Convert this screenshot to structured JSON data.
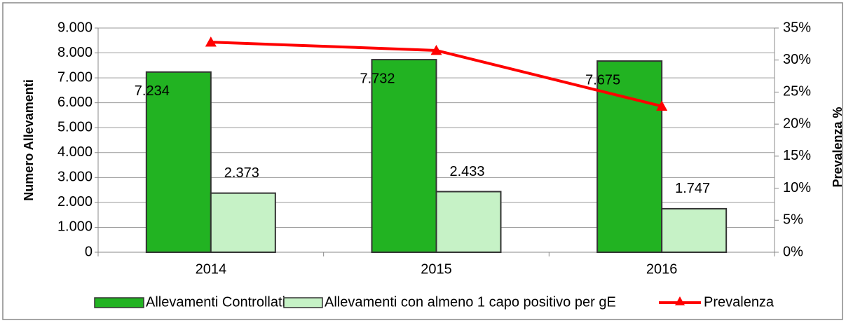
{
  "chart_data": {
    "type": "bar",
    "categories": [
      "2014",
      "2015",
      "2016"
    ],
    "series": [
      {
        "name": "Allevamenti Controllati",
        "color": "#22b322",
        "values": [
          7234,
          7732,
          7675
        ],
        "value_labels": [
          "7.234",
          "7.732",
          "7.675"
        ]
      },
      {
        "name": "Allevamenti con almeno 1 capo positivo per gE",
        "color": "#c6f2c6",
        "values": [
          2373,
          2433,
          1747
        ],
        "value_labels": [
          "2.373",
          "2.433",
          "1.747"
        ]
      },
      {
        "name": "Prevalenza",
        "type": "line",
        "axis": "y2",
        "color": "#ff0000",
        "values": [
          32.8,
          31.5,
          22.8
        ]
      }
    ],
    "ylabel": "Numero Allevamenti",
    "y2label": "Prevalenza %",
    "ylim": [
      0,
      9000
    ],
    "yticks": [
      0,
      {
        "value": 1000,
        "label": "1.000"
      },
      {
        "value": 2000,
        "label": "2.000"
      },
      {
        "value": 3000,
        "label": "3.000"
      },
      {
        "value": 4000,
        "label": "4.000"
      },
      {
        "value": 5000,
        "label": "5.000"
      },
      {
        "value": 6000,
        "label": "6.000"
      },
      {
        "value": 7000,
        "label": "7.000"
      },
      {
        "value": 8000,
        "label": "8.000"
      },
      {
        "value": 9000,
        "label": "9.000"
      }
    ],
    "y2lim": [
      0,
      35
    ],
    "y2ticks": [
      {
        "value": 0,
        "label": "0%"
      },
      {
        "value": 5,
        "label": "5%"
      },
      {
        "value": 10,
        "label": "10%"
      },
      {
        "value": 15,
        "label": "15%"
      },
      {
        "value": 20,
        "label": "20%"
      },
      {
        "value": 25,
        "label": "25%"
      },
      {
        "value": 30,
        "label": "30%"
      },
      {
        "value": 35,
        "label": "35%"
      }
    ],
    "grid": true,
    "legend": "bottom"
  }
}
